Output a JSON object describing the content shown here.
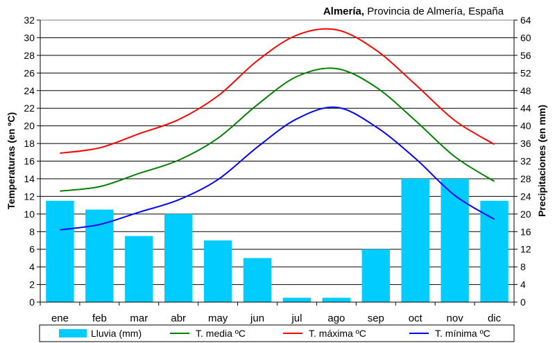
{
  "chart_data": {
    "type": "bar",
    "title_place": "Almería,",
    "title_rest": "Provincia de Almería, España",
    "categories": [
      "ene",
      "feb",
      "mar",
      "abr",
      "may",
      "jun",
      "jul",
      "ago",
      "sep",
      "oct",
      "nov",
      "dic"
    ],
    "ylabel": "Temperaturas (en ºC)",
    "y2label": "Precipitaciones (en mm)",
    "ylim": [
      0,
      32
    ],
    "y2lim": [
      0,
      64
    ],
    "yticks": [
      0,
      2,
      4,
      6,
      8,
      10,
      12,
      14,
      16,
      18,
      20,
      22,
      24,
      26,
      28,
      30,
      32
    ],
    "y2ticks": [
      0,
      4,
      8,
      12,
      16,
      20,
      24,
      28,
      32,
      36,
      40,
      44,
      48,
      52,
      56,
      60,
      64
    ],
    "grid": true,
    "legend_position": "bottom",
    "bars": {
      "name": "Lluvia (mm)",
      "color": "#00ccff",
      "axis": "right",
      "values": [
        23,
        21,
        15,
        20,
        14,
        10,
        1,
        1,
        12,
        28,
        28,
        23
      ]
    },
    "series": [
      {
        "name": "T. media ºC",
        "color": "#008000",
        "axis": "left",
        "values": [
          12.6,
          13.1,
          14.6,
          16.1,
          18.6,
          22.4,
          25.6,
          26.5,
          24.4,
          20.6,
          16.5,
          13.7
        ]
      },
      {
        "name": "T. máxima ºC",
        "color": "#ff0000",
        "axis": "left",
        "values": [
          16.9,
          17.5,
          19.1,
          20.7,
          23.4,
          27.4,
          30.3,
          30.9,
          28.6,
          24.7,
          20.6,
          17.9
        ]
      },
      {
        "name": "T. mínima ºC",
        "color": "#0000ff",
        "axis": "left",
        "values": [
          8.2,
          8.8,
          10.2,
          11.6,
          13.9,
          17.6,
          20.8,
          22.1,
          19.9,
          16.3,
          12.1,
          9.4
        ]
      }
    ]
  }
}
